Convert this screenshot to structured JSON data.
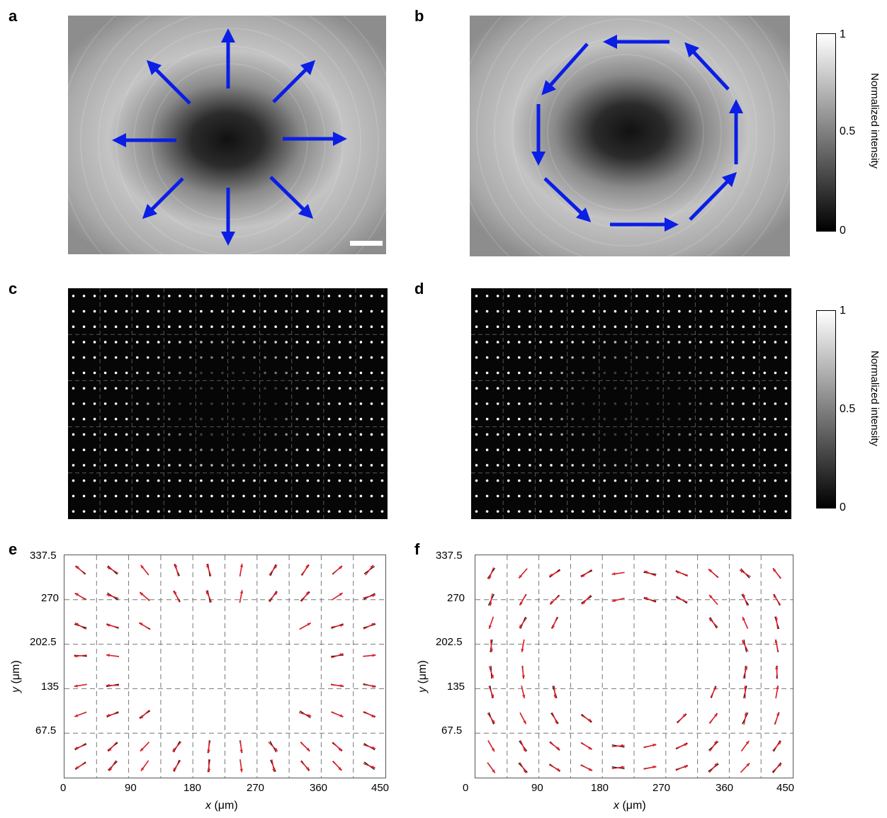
{
  "panels": {
    "a": "a",
    "b": "b",
    "c": "c",
    "d": "d",
    "e": "e",
    "f": "f"
  },
  "colorbar": {
    "max": "1",
    "mid": "0.5",
    "min": "0",
    "label": "Normalized intensity"
  },
  "colors": {
    "field_arrows": "#0a1ee6",
    "measured": "#000000",
    "target": "#e0202a"
  },
  "chart_data": [
    {
      "panel": "e",
      "type": "scatter",
      "subtype": "quiver",
      "xlabel_italic": "x",
      "xlabel_unit": "(μm)",
      "ylabel_italic": "y",
      "ylabel_unit": "(μm)",
      "xlim": [
        0,
        450
      ],
      "ylim": [
        0,
        337.5
      ],
      "xticks": [
        "0",
        "90",
        "180",
        "270",
        "360",
        "450"
      ],
      "yticks": [
        "67.5",
        "135",
        "202.5",
        "270",
        "337.5"
      ],
      "grid": "dashed",
      "pattern": "radial"
    },
    {
      "panel": "f",
      "type": "scatter",
      "subtype": "quiver",
      "xlabel_italic": "x",
      "xlabel_unit": "(μm)",
      "ylabel_italic": "y",
      "ylabel_unit": "(μm)",
      "xlim": [
        0,
        450
      ],
      "ylim": [
        0,
        337.5
      ],
      "xticks": [
        "0",
        "90",
        "180",
        "270",
        "360",
        "450"
      ],
      "yticks": [
        "67.5",
        "135",
        "202.5",
        "270",
        "337.5"
      ],
      "grid": "dashed",
      "pattern": "azimuthal"
    }
  ]
}
